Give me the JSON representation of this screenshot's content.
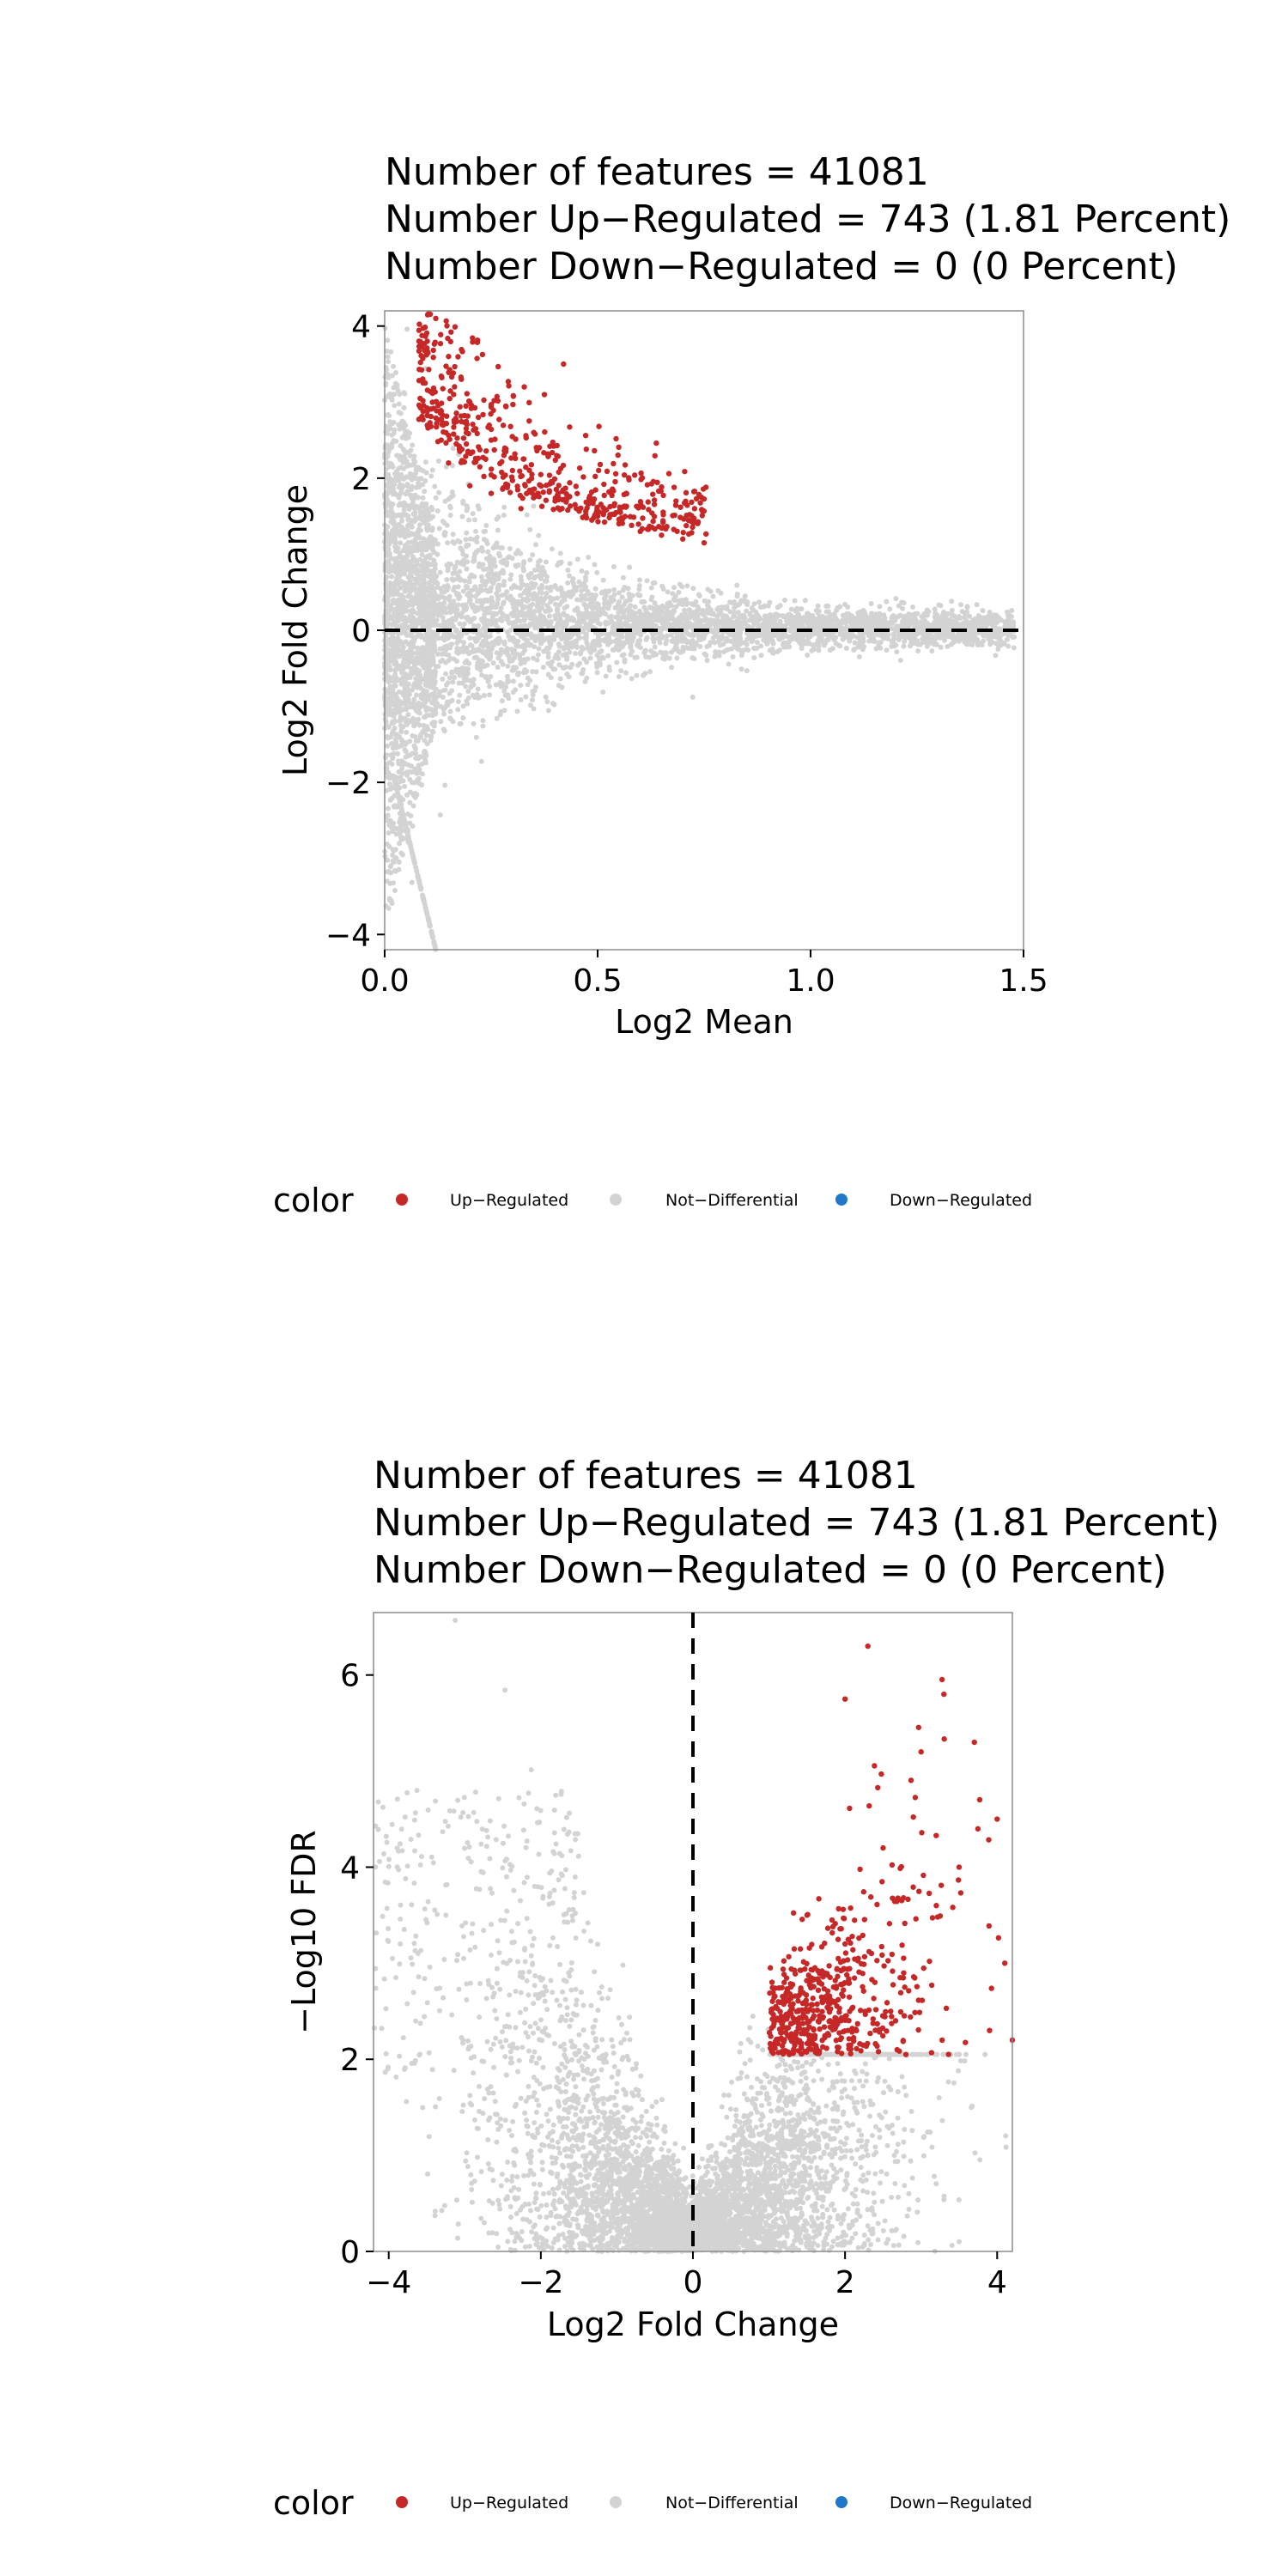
{
  "chart_data": [
    {
      "type": "scatter",
      "title": [
        "Number of features = 41081",
        "Number Up−Regulated = 743 (1.81 Percent)",
        "Number Down−Regulated = 0 (0 Percent)"
      ],
      "xlabel": "Log2 Mean",
      "ylabel": "Log2 Fold Change",
      "xlim": [
        0,
        1.5
      ],
      "ylim": [
        -4.2,
        4.2
      ],
      "xticks": [
        0,
        0.5,
        1.0,
        1.5
      ],
      "xtick_labels": [
        "0.0",
        "0.5",
        "1.0",
        "1.5"
      ],
      "yticks": [
        -4,
        -2,
        0,
        2,
        4
      ],
      "ytick_labels": [
        "−4",
        "−2",
        "0",
        "2",
        "4"
      ],
      "reference_line": {
        "axis": "y",
        "value": 0,
        "style": "dashed"
      },
      "grid": false,
      "series": [
        {
          "name": "Up−Regulated",
          "color": "#C62828",
          "points": [
            [
              0.12,
              4.1
            ],
            [
              0.1,
              3.8
            ],
            [
              0.15,
              3.6
            ],
            [
              0.18,
              3.3
            ],
            [
              0.2,
              3.0
            ],
            [
              0.22,
              2.8
            ],
            [
              0.25,
              2.5
            ],
            [
              0.28,
              2.3
            ],
            [
              0.3,
              2.1
            ],
            [
              0.33,
              1.9
            ],
            [
              0.36,
              1.8
            ],
            [
              0.4,
              1.7
            ],
            [
              0.45,
              1.6
            ],
            [
              0.5,
              1.5
            ],
            [
              0.55,
              1.4
            ],
            [
              0.6,
              1.3
            ],
            [
              0.65,
              1.25
            ],
            [
              0.7,
              1.2
            ],
            [
              0.75,
              1.15
            ],
            [
              0.42,
              3.5
            ],
            [
              0.35,
              2.6
            ],
            [
              0.15,
              2.2
            ],
            [
              0.2,
              1.9
            ],
            [
              0.25,
              1.8
            ],
            [
              0.32,
              1.6
            ]
          ]
        },
        {
          "name": "Not−Differential",
          "color": "#D3D3D3",
          "points": []
        },
        {
          "name": "Down−Regulated",
          "color": "#1F78C8",
          "points": []
        }
      ],
      "legend": {
        "title": "color",
        "placement": "bottom",
        "entries": [
          "Up−Regulated",
          "Not−Differential",
          "Down−Regulated"
        ]
      }
    },
    {
      "type": "scatter",
      "title": [
        "Number of features = 41081",
        "Number Up−Regulated = 743 (1.81 Percent)",
        "Number Down−Regulated = 0 (0 Percent)"
      ],
      "xlabel": "Log2 Fold Change",
      "ylabel": "−Log10 FDR",
      "xlim": [
        -4.2,
        4.2
      ],
      "ylim": [
        0,
        6.65
      ],
      "xticks": [
        -4,
        -2,
        0,
        2,
        4
      ],
      "xtick_labels": [
        "−4",
        "−2",
        "0",
        "2",
        "4"
      ],
      "yticks": [
        0,
        2,
        4,
        6
      ],
      "ytick_labels": [
        "0",
        "2",
        "4",
        "6"
      ],
      "reference_line": {
        "axis": "x",
        "value": 0,
        "style": "dashed"
      },
      "grid": false,
      "series": [
        {
          "name": "Up−Regulated",
          "color": "#C62828",
          "points": [
            [
              2.3,
              6.3
            ],
            [
              3.3,
              5.8
            ],
            [
              2.0,
              5.75
            ],
            [
              3.7,
              5.3
            ],
            [
              3.0,
              5.2
            ],
            [
              4.0,
              4.5
            ],
            [
              3.5,
              4.0
            ],
            [
              2.5,
              4.2
            ],
            [
              1.5,
              3.5
            ],
            [
              2.0,
              3.2
            ],
            [
              4.1,
              3.0
            ],
            [
              1.2,
              2.8
            ],
            [
              1.8,
              2.6
            ],
            [
              2.6,
              2.5
            ],
            [
              3.9,
              2.3
            ],
            [
              1.1,
              2.2
            ],
            [
              1.6,
              2.1
            ],
            [
              2.8,
              2.05
            ],
            [
              4.2,
              2.2
            ],
            [
              3.2,
              3.6
            ]
          ]
        },
        {
          "name": "Not−Differential",
          "color": "#D3D3D3",
          "points": []
        },
        {
          "name": "Down−Regulated",
          "color": "#1F78C8",
          "points": []
        }
      ],
      "legend": {
        "title": "color",
        "placement": "bottom",
        "entries": [
          "Up−Regulated",
          "Not−Differential",
          "Down−Regulated"
        ]
      }
    }
  ]
}
